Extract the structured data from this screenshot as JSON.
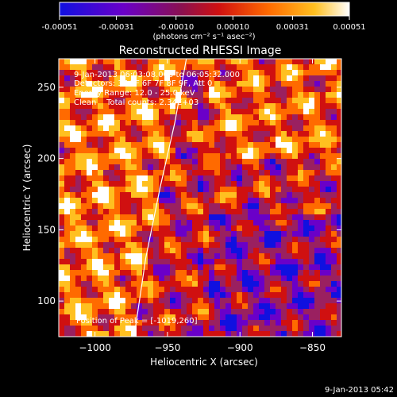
{
  "colorbar": {
    "ticks": [
      "-0.00051",
      "-0.00031",
      "-0.00010",
      "0.00010",
      "0.00031",
      "0.00051"
    ],
    "unit_label": "(photons cm⁻² s⁻¹ asec⁻²)",
    "colors": [
      "#1010e0",
      "#6a00c8",
      "#9a2060",
      "#d01010",
      "#ff6a00",
      "#ffc020",
      "#ffffff"
    ]
  },
  "chart_data": {
    "type": "heatmap",
    "title": "Reconstructed RHESSI Image",
    "xlabel": "Heliocentric X (arcsec)",
    "ylabel": "Heliocentric Y (arcsec)",
    "xlim": [
      -1025,
      -830
    ],
    "ylim": [
      75,
      270
    ],
    "x_ticks": [
      -1000,
      -950,
      -900,
      -850
    ],
    "y_ticks": [
      100,
      150,
      200,
      250
    ],
    "x_tick_labels": [
      "−1000",
      "−950",
      "−900",
      "−850"
    ],
    "y_tick_labels": [
      "100",
      "150",
      "200",
      "250"
    ],
    "value_range": [
      -0.00051,
      0.00051
    ],
    "limb_curve": [
      [
        -973,
        75
      ],
      [
        -965,
        130
      ],
      [
        -955,
        180
      ],
      [
        -945,
        225
      ],
      [
        -937,
        270
      ]
    ],
    "annotations": [
      "9-Jan-2013 06:03:08.000 to 06:05:32.000",
      "Detectors: 3F 5F 6F 7F 8F 9F, Att 0",
      "Energy Range: 12.0 - 25.0 keV",
      "Clean    Total counts: 2.34E+03"
    ],
    "peak_label": "Position of Peak = [-1019,260]",
    "timestamp": "9-Jan-2013 05:42"
  }
}
